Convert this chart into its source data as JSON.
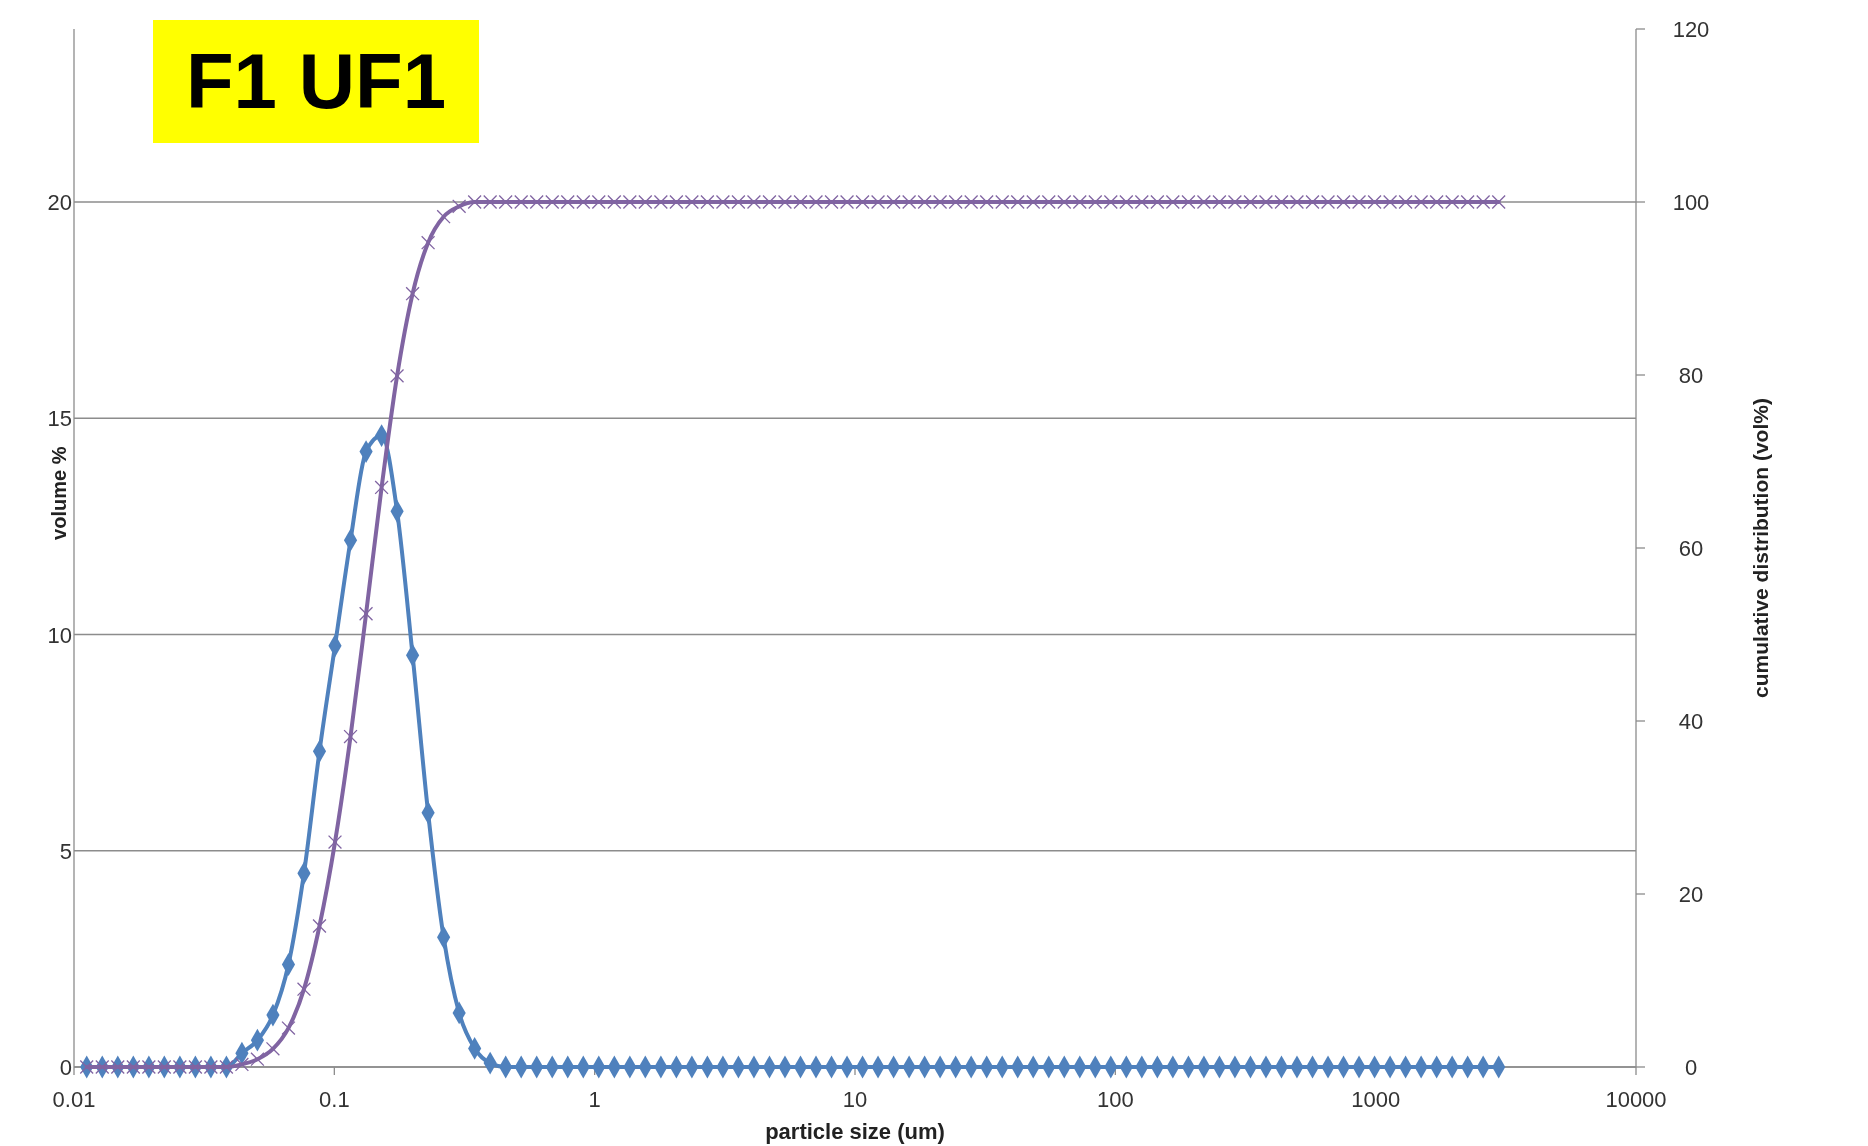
{
  "chart_data": {
    "type": "line",
    "title": "F1 UF1",
    "xlabel": "particle size (um)",
    "ylabel": "volume %",
    "y2label": "cumulative distribution (vol%)",
    "log": "x",
    "grid": "y",
    "xlim": [
      0.01,
      10000
    ],
    "xticks": [
      0.01,
      0.1,
      1,
      10,
      100,
      1000,
      10000
    ],
    "ylim": [
      0,
      24
    ],
    "yticks": [
      0,
      5,
      10,
      15,
      20
    ],
    "y2lim": [
      0,
      120
    ],
    "y2ticks": [
      0,
      20,
      40,
      60,
      80,
      100,
      120
    ],
    "x": [
      0.01119,
      0.01284,
      0.01473,
      0.0169,
      0.01939,
      0.02223,
      0.02551,
      0.02926,
      0.03356,
      0.0385,
      0.04416,
      0.05065,
      0.0581,
      0.06665,
      0.07645,
      0.0877,
      0.1006,
      0.1154,
      0.1324,
      0.1519,
      0.1742,
      0.1998,
      0.2292,
      0.2629,
      0.3016,
      0.3459,
      0.3968,
      0.4552,
      0.5221,
      0.5989,
      0.6871,
      0.7882,
      0.9042,
      1.037,
      1.19,
      1.365,
      1.565,
      1.796,
      2.06,
      2.363,
      2.71,
      3.109,
      3.566,
      4.091,
      4.693,
      5.383,
      6.175,
      7.083,
      8.125,
      9.32,
      10.69,
      12.26,
      14.07,
      16.14,
      18.51,
      21.23,
      24.36,
      27.94,
      32.05,
      36.77,
      42.17,
      48.38,
      55.5,
      63.66,
      73.02,
      83.75,
      96.07,
      110.2,
      126.4,
      145,
      166.3,
      190.9,
      218.9,
      251.1,
      288,
      330.4,
      379,
      434.7,
      498.6,
      572,
      656.1,
      752.6,
      863.3,
      990.4,
      1136,
      1303,
      1495,
      1715,
      1967,
      2256,
      2588,
      2969
    ],
    "series": [
      {
        "color": "#4f81bd",
        "marker": "diamond",
        "line_style": "solid",
        "values": [
          0,
          0,
          0,
          0,
          0,
          0,
          0,
          0,
          0,
          0,
          0.32,
          0.62,
          1.2,
          2.37,
          4.48,
          7.3,
          9.74,
          12.18,
          14.23,
          14.6,
          12.85,
          9.52,
          5.88,
          3.0,
          1.25,
          0.43,
          0.09,
          0,
          0,
          0,
          0,
          0,
          0,
          0,
          0,
          0,
          0,
          0,
          0,
          0,
          0,
          0,
          0,
          0,
          0,
          0,
          0,
          0,
          0,
          0,
          0,
          0,
          0,
          0,
          0,
          0,
          0,
          0,
          0,
          0,
          0,
          0,
          0,
          0,
          0,
          0,
          0,
          0,
          0,
          0,
          0,
          0,
          0,
          0,
          0,
          0,
          0,
          0,
          0,
          0,
          0,
          0,
          0,
          0,
          0,
          0,
          0,
          0,
          0,
          0,
          0,
          0
        ]
      },
      {
        "axis": "y2",
        "color": "#8064a2",
        "marker": "cross",
        "line_style": "solid",
        "values": [
          0,
          0,
          0,
          0,
          0,
          0,
          0,
          0,
          0,
          0,
          0.3,
          0.9,
          2.1,
          4.5,
          9.0,
          16.3,
          26.0,
          38.2,
          52.4,
          67.0,
          79.9,
          89.4,
          95.3,
          98.3,
          99.5,
          100,
          100,
          100,
          100,
          100,
          100,
          100,
          100,
          100,
          100,
          100,
          100,
          100,
          100,
          100,
          100,
          100,
          100,
          100,
          100,
          100,
          100,
          100,
          100,
          100,
          100,
          100,
          100,
          100,
          100,
          100,
          100,
          100,
          100,
          100,
          100,
          100,
          100,
          100,
          100,
          100,
          100,
          100,
          100,
          100,
          100,
          100,
          100,
          100,
          100,
          100,
          100,
          100,
          100,
          100,
          100,
          100,
          100,
          100,
          100,
          100,
          100,
          100,
          100,
          100,
          100,
          100
        ]
      }
    ]
  }
}
